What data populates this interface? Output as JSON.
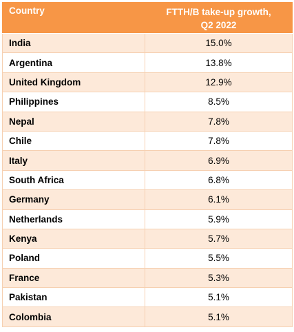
{
  "chart_data": {
    "type": "table",
    "columns": [
      "Country",
      "FTTH/B take-up growth, Q2 2022"
    ],
    "header_lines": [
      "FTTH/B take-up growth,",
      "Q2 2022"
    ],
    "rows": [
      {
        "country": "India",
        "value": "15.0%"
      },
      {
        "country": "Argentina",
        "value": "13.8%"
      },
      {
        "country": "United Kingdom",
        "value": "12.9%"
      },
      {
        "country": "Philippines",
        "value": "8.5%"
      },
      {
        "country": "Nepal",
        "value": "7.8%"
      },
      {
        "country": "Chile",
        "value": "7.8%"
      },
      {
        "country": "Italy",
        "value": "6.9%"
      },
      {
        "country": "South Africa",
        "value": "6.8%"
      },
      {
        "country": "Germany",
        "value": "6.1%"
      },
      {
        "country": "Netherlands",
        "value": "5.9%"
      },
      {
        "country": "Kenya",
        "value": "5.7%"
      },
      {
        "country": "Poland",
        "value": "5.5%"
      },
      {
        "country": "France",
        "value": "5.3%"
      },
      {
        "country": "Pakistan",
        "value": "5.1%"
      },
      {
        "country": "Colombia",
        "value": "5.1%"
      }
    ],
    "colors": {
      "header_bg": "#f79646",
      "header_text": "#ffffff",
      "band_odd": "#fde9d9",
      "band_even": "#ffffff",
      "border": "#f6d0b1"
    }
  }
}
